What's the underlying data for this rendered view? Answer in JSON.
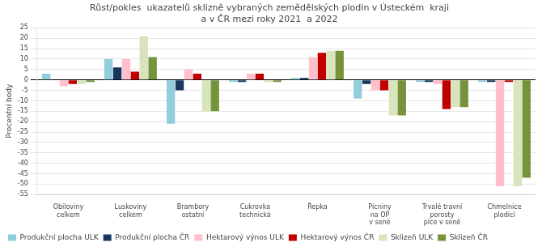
{
  "chart_data": {
    "type": "bar",
    "title": "Růst/pokles  ukazatelů sklizně vybraných zemědělských plodin v Ústeckém  kraji\na v ČR mezi roky 2021  a 2022",
    "ylabel": "Procentní body",
    "categories": [
      "Obiloviny\ncelkem",
      "Luskoviny\ncelkem",
      "Brambory\nostatní",
      "Cukrovka\ntechnická",
      "Řepka",
      "Pícniny\nna OP\nv seně",
      "Trvalé travní\nporosty\npíce v seně",
      "Chmelnice\nplodící"
    ],
    "series": [
      {
        "name": "Produkční plocha ULK",
        "color": "#92CDDC",
        "values": [
          3,
          10,
          -21,
          -1,
          1,
          -9,
          -1,
          -1
        ]
      },
      {
        "name": "Produkční plocha ČR",
        "color": "#17375E",
        "values": [
          0,
          6,
          -5,
          -1,
          1,
          -2,
          -1,
          -1
        ]
      },
      {
        "name": "Hektarový výnos ULK",
        "color": "#FFC0CB",
        "values": [
          -3,
          10,
          5,
          3,
          11,
          -5,
          -2,
          -51
        ]
      },
      {
        "name": "Hektarový výnos ČR",
        "color": "#C00000",
        "values": [
          -2,
          4,
          3,
          3,
          13,
          -5,
          -14,
          -1
        ]
      },
      {
        "name": "Sklizeň ULK",
        "color": "#D8E4BC",
        "values": [
          -2,
          21,
          -15,
          -1,
          14,
          -17,
          -13,
          -51
        ]
      },
      {
        "name": "Sklizeň ČR",
        "color": "#76933C",
        "values": [
          -1,
          11,
          -15,
          -1,
          14,
          -17,
          -13,
          -47
        ]
      }
    ],
    "ylim": [
      -55,
      25
    ],
    "yticks": [
      -55,
      -50,
      -45,
      -40,
      -35,
      -30,
      -25,
      -20,
      -15,
      -10,
      -5,
      0,
      5,
      10,
      15,
      20,
      25
    ],
    "grid": true,
    "legend": "lower left"
  }
}
